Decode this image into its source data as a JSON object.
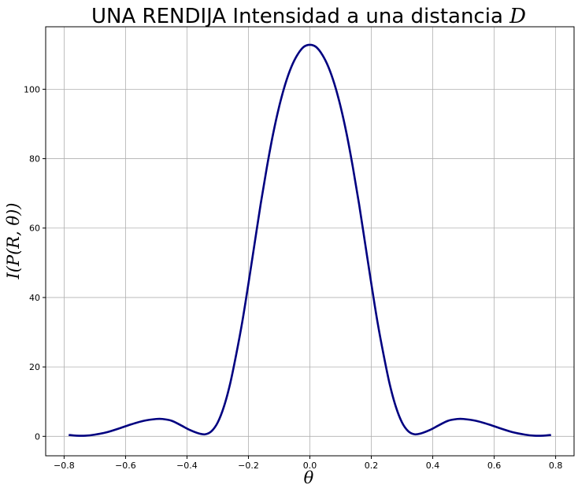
{
  "chart_data": {
    "type": "line",
    "title": "UNA RENDIJA Intensidad a una distancia D",
    "xlabel": "θ",
    "ylabel": "I(P(R, θ))",
    "xlim": [
      -0.86,
      0.86
    ],
    "ylim": [
      -5.6,
      118
    ],
    "grid": true,
    "x_ticks": [
      "-0.8",
      "-0.6",
      "-0.4",
      "-0.2",
      "0.0",
      "0.2",
      "0.4",
      "0.6",
      "0.8"
    ],
    "y_ticks": [
      "0",
      "20",
      "40",
      "60",
      "80",
      "100"
    ],
    "colors": {
      "series": "#000080",
      "grid": "#b0b0b0"
    },
    "series": [
      {
        "x": [
          -0.785,
          -0.76,
          -0.73,
          -0.7,
          -0.66,
          -0.62,
          -0.58,
          -0.54,
          -0.5,
          -0.48,
          -0.45,
          -0.42,
          -0.39,
          -0.36,
          -0.34,
          -0.32,
          -0.3,
          -0.28,
          -0.26,
          -0.24,
          -0.22,
          -0.2,
          -0.18,
          -0.16,
          -0.14,
          -0.12,
          -0.1,
          -0.08,
          -0.06,
          -0.04,
          -0.02,
          0.0,
          0.02,
          0.04,
          0.06,
          0.08,
          0.1,
          0.12,
          0.14,
          0.16,
          0.18,
          0.2,
          0.22,
          0.24,
          0.26,
          0.28,
          0.3,
          0.32,
          0.34,
          0.36,
          0.39,
          0.42,
          0.45,
          0.48,
          0.5,
          0.54,
          0.58,
          0.62,
          0.66,
          0.7,
          0.73,
          0.76,
          0.785
        ],
        "values": [
          0.4,
          0.2,
          0.2,
          0.5,
          1.2,
          2.3,
          3.5,
          4.5,
          5.0,
          5.0,
          4.5,
          3.2,
          1.8,
          0.8,
          0.6,
          1.5,
          4.0,
          8.5,
          15.0,
          23.5,
          33.0,
          44.0,
          55.5,
          67.0,
          77.5,
          87.0,
          95.0,
          101.5,
          106.5,
          110.0,
          112.2,
          112.8,
          112.2,
          110.0,
          106.5,
          101.5,
          95.0,
          87.0,
          77.5,
          67.0,
          55.5,
          44.0,
          33.0,
          23.5,
          15.0,
          8.5,
          4.0,
          1.5,
          0.6,
          0.8,
          1.8,
          3.2,
          4.5,
          5.0,
          5.0,
          4.5,
          3.5,
          2.3,
          1.2,
          0.5,
          0.2,
          0.2,
          0.4
        ]
      }
    ]
  }
}
